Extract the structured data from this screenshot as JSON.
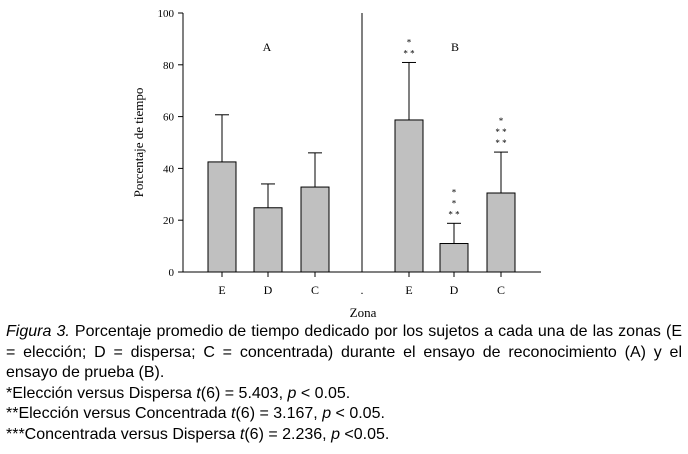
{
  "chart_data": {
    "type": "bar",
    "ylabel": "Porcentaje de tiempo",
    "xlabel": "Zona",
    "ylim": [
      0,
      100
    ],
    "yticks": [
      0,
      20,
      40,
      60,
      80,
      100
    ],
    "bar_color": "#c0c0c0",
    "groups": [
      {
        "label": "A",
        "categories": [
          "E",
          "D",
          "C"
        ],
        "values": [
          42.5,
          24.8,
          32.8
        ],
        "errors": [
          18.2,
          9.2,
          13.2
        ],
        "annotations": [
          "",
          "",
          ""
        ]
      },
      {
        "label": "B",
        "categories": [
          "E",
          "D",
          "C"
        ],
        "values": [
          58.7,
          11.0,
          30.5
        ],
        "errors": [
          22.2,
          7.8,
          15.8
        ],
        "annotations": [
          "*\n* *",
          "*\n*\n* *",
          "*\n* *\n* *"
        ]
      }
    ],
    "separator_tick_label": "."
  },
  "caption": {
    "figure_label": "Figura 3.",
    "text": "  Porcentaje promedio de tiempo dedicado por los sujetos a cada una de las zonas (E = elección; D = dispersa; C = concentrada) durante el ensayo de reconocimiento (A) y el ensayo de prueba (B).",
    "notes": [
      {
        "prefix": "*Elección versus Dispersa ",
        "stat": "t",
        "mid": "(6) = 5.403, ",
        "p": "p",
        "tail": " < 0.05."
      },
      {
        "prefix": "**Elección versus Concentrada ",
        "stat": "t",
        "mid": "(6) = 3.167, ",
        "p": "p",
        "tail": " < 0.05."
      },
      {
        "prefix": "***Concentrada versus Dispersa ",
        "stat": "t",
        "mid": "(6) = 2.236, ",
        "p": "p",
        "tail": " <0.05."
      }
    ]
  }
}
